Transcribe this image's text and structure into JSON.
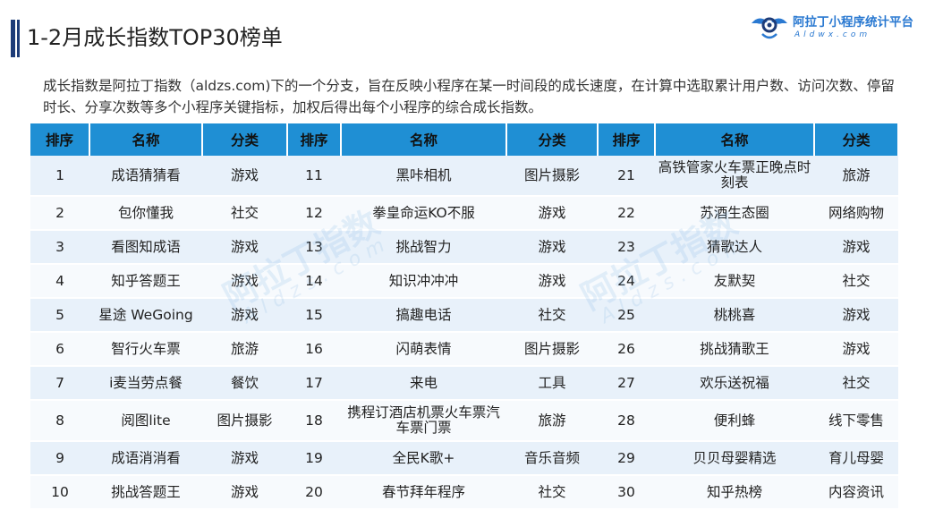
{
  "title": "1-2月成长指数TOP30榜单",
  "logo": {
    "name": "阿拉丁小程序统计平台",
    "domain": "Aldwx.com"
  },
  "description": "成长指数是阿拉丁指数（aldzs.com)下的一个分支，旨在反映小程序在某一时间段的成长速度，在计算中选取累计用户数、访问次数、停留时长、分享次数等多个小程序关键指标，加权后得出每个小程序的综合成长指数。",
  "watermark": {
    "text": "阿拉丁指数",
    "sub": "Aldzs.com"
  },
  "table": {
    "headers": [
      "排序",
      "名称",
      "分类",
      "排序",
      "名称",
      "分类",
      "排序",
      "名称",
      "分类"
    ],
    "rows": [
      [
        [
          "1",
          "成语猜猜看",
          "游戏"
        ],
        [
          "11",
          "黑咔相机",
          "图片摄影"
        ],
        [
          "21",
          "高铁管家火车票正晚点时刻表",
          "旅游"
        ]
      ],
      [
        [
          "2",
          "包你懂我",
          "社交"
        ],
        [
          "12",
          "拳皇命运KO不服",
          "游戏"
        ],
        [
          "22",
          "苏酒生态圈",
          "网络购物"
        ]
      ],
      [
        [
          "3",
          "看图知成语",
          "游戏"
        ],
        [
          "13",
          "挑战智力",
          "游戏"
        ],
        [
          "23",
          "猜歌达人",
          "游戏"
        ]
      ],
      [
        [
          "4",
          "知乎答题王",
          "游戏"
        ],
        [
          "14",
          "知识冲冲冲",
          "游戏"
        ],
        [
          "24",
          "友默契",
          "社交"
        ]
      ],
      [
        [
          "5",
          "星途 WeGoing",
          "游戏"
        ],
        [
          "15",
          "搞趣电话",
          "社交"
        ],
        [
          "25",
          "桃桃喜",
          "游戏"
        ]
      ],
      [
        [
          "6",
          "智行火车票",
          "旅游"
        ],
        [
          "16",
          "闪萌表情",
          "图片摄影"
        ],
        [
          "26",
          "挑战猜歌王",
          "游戏"
        ]
      ],
      [
        [
          "7",
          "i麦当劳点餐",
          "餐饮"
        ],
        [
          "17",
          "来电",
          "工具"
        ],
        [
          "27",
          "欢乐送祝福",
          "社交"
        ]
      ],
      [
        [
          "8",
          "阅图lite",
          "图片摄影"
        ],
        [
          "18",
          "携程订酒店机票火车票汽车票门票",
          "旅游"
        ],
        [
          "28",
          "便利蜂",
          "线下零售"
        ]
      ],
      [
        [
          "9",
          "成语消消看",
          "游戏"
        ],
        [
          "19",
          "全民K歌+",
          "音乐音频"
        ],
        [
          "29",
          "贝贝母婴精选",
          "育儿母婴"
        ]
      ],
      [
        [
          "10",
          "挑战答题王",
          "游戏"
        ],
        [
          "20",
          "春节拜年程序",
          "社交"
        ],
        [
          "30",
          "知乎热榜",
          "内容资讯"
        ]
      ]
    ]
  }
}
